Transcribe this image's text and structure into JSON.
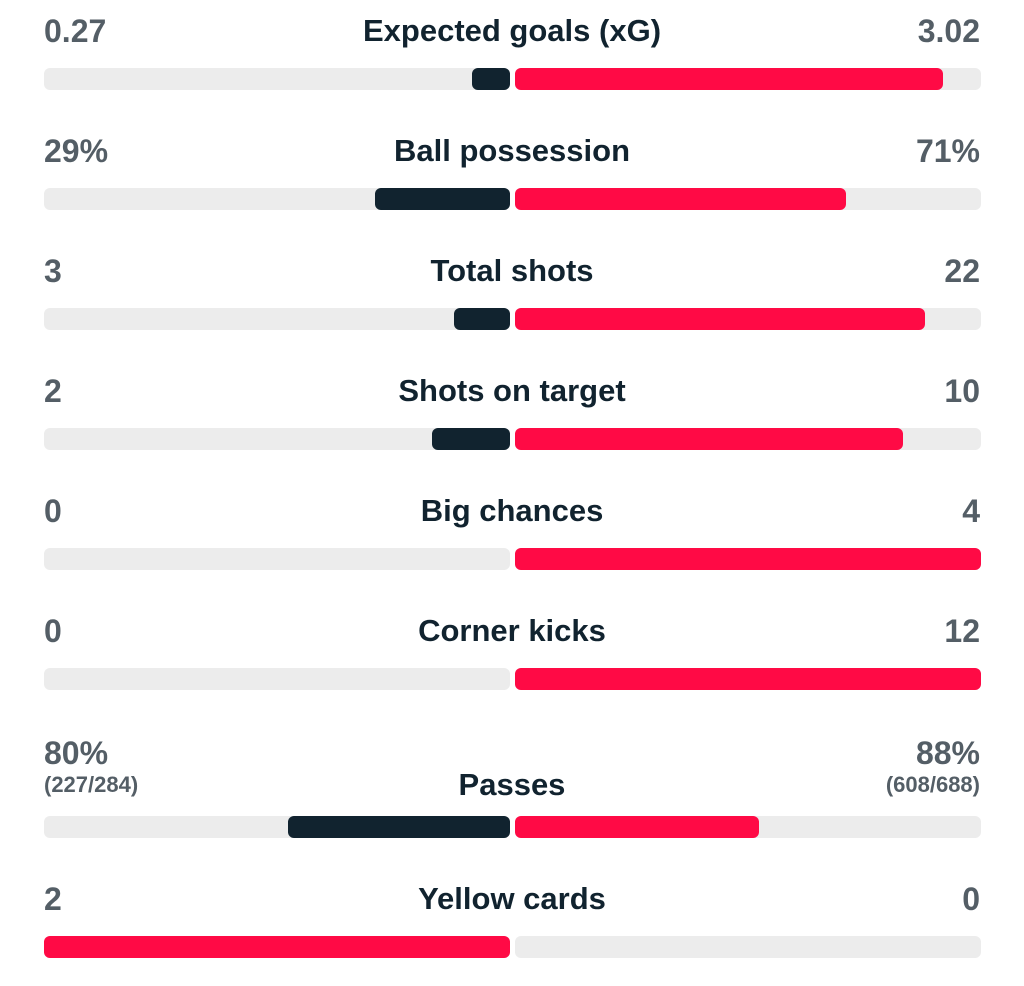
{
  "colors": {
    "dark_bar": "#11232f",
    "red_bar": "#ff0a45",
    "track": "#ececec",
    "value_text": "#545e66",
    "label_text": "#11232f"
  },
  "stats": [
    {
      "label": "Expected goals (xG)",
      "left": "0.27",
      "right": "3.02",
      "left_share": 0.082,
      "right_share": 0.918,
      "left_color": "dark",
      "right_color": "red"
    },
    {
      "label": "Ball possession",
      "left": "29%",
      "right": "71%",
      "left_share": 0.29,
      "right_share": 0.71,
      "left_color": "dark",
      "right_color": "red"
    },
    {
      "label": "Total shots",
      "left": "3",
      "right": "22",
      "left_share": 0.12,
      "right_share": 0.88,
      "left_color": "dark",
      "right_color": "red"
    },
    {
      "label": "Shots on target",
      "left": "2",
      "right": "10",
      "left_share": 0.167,
      "right_share": 0.833,
      "left_color": "dark",
      "right_color": "red"
    },
    {
      "label": "Big chances",
      "left": "0",
      "right": "4",
      "left_share": 0,
      "right_share": 1,
      "left_color": "dark",
      "right_color": "red"
    },
    {
      "label": "Corner kicks",
      "left": "0",
      "right": "12",
      "left_share": 0,
      "right_share": 1,
      "left_color": "dark",
      "right_color": "red"
    },
    {
      "label": "Passes",
      "left": "80%",
      "left_sub": "(227/284)",
      "right": "88%",
      "right_sub": "(608/688)",
      "left_share": 0.476,
      "right_share": 0.524,
      "left_color": "dark",
      "right_color": "red"
    },
    {
      "label": "Yellow cards",
      "left": "2",
      "right": "0",
      "left_share": 1,
      "right_share": 0,
      "left_color": "red",
      "right_color": "dark"
    }
  ]
}
